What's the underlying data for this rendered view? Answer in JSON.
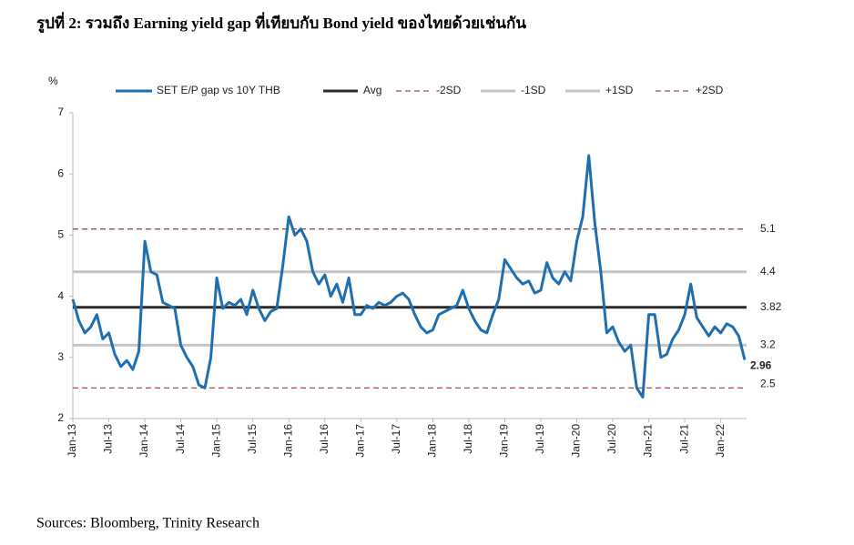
{
  "chart_data": {
    "type": "line",
    "title": "รูปที่ 2: รวมถึง Earning yield gap ที่เทียบกับ Bond yield ของไทยด้วยเช่นกัน",
    "y_label": "%",
    "source": "Sources: Bloomberg, Trinity Research",
    "categories": [
      "Jan-13",
      null,
      null,
      null,
      null,
      null,
      "Jul-13",
      null,
      null,
      null,
      null,
      null,
      "Jan-14",
      null,
      null,
      null,
      null,
      null,
      "Jul-14",
      null,
      null,
      null,
      null,
      null,
      "Jan-15",
      null,
      null,
      null,
      null,
      null,
      "Jul-15",
      null,
      null,
      null,
      null,
      null,
      "Jan-16",
      null,
      null,
      null,
      null,
      null,
      "Jul-16",
      null,
      null,
      null,
      null,
      null,
      "Jan-17",
      null,
      null,
      null,
      null,
      null,
      "Jul-17",
      null,
      null,
      null,
      null,
      null,
      "Jan-18",
      null,
      null,
      null,
      null,
      null,
      "Jul-18",
      null,
      null,
      null,
      null,
      null,
      "Jan-19",
      null,
      null,
      null,
      null,
      null,
      "Jul-19",
      null,
      null,
      null,
      null,
      null,
      "Jan-20",
      null,
      null,
      null,
      null,
      null,
      "Jul-20",
      null,
      null,
      null,
      null,
      null,
      "Jan-21",
      null,
      null,
      null,
      null,
      null,
      "Jul-21",
      null,
      null,
      null,
      null,
      null,
      "Jan-22",
      null,
      null,
      null,
      null
    ],
    "series": [
      {
        "name": "SET E/P gap vs 10Y THB",
        "color": "#1f6fb0",
        "values": [
          3.95,
          3.6,
          3.4,
          3.5,
          3.7,
          3.3,
          3.4,
          3.05,
          2.85,
          2.95,
          2.8,
          3.1,
          4.9,
          4.4,
          4.35,
          3.9,
          3.85,
          3.8,
          3.2,
          3.0,
          2.85,
          2.55,
          2.5,
          3.0,
          4.3,
          3.8,
          3.9,
          3.85,
          3.95,
          3.7,
          4.1,
          3.8,
          3.6,
          3.75,
          3.8,
          4.5,
          5.3,
          5.0,
          5.1,
          4.9,
          4.4,
          4.2,
          4.35,
          4.0,
          4.2,
          3.9,
          4.3,
          3.7,
          3.7,
          3.85,
          3.8,
          3.9,
          3.85,
          3.9,
          4.0,
          4.05,
          3.95,
          3.7,
          3.5,
          3.4,
          3.45,
          3.7,
          3.75,
          3.8,
          3.85,
          4.1,
          3.8,
          3.6,
          3.45,
          3.4,
          3.7,
          3.95,
          4.6,
          4.45,
          4.3,
          4.2,
          4.25,
          4.05,
          4.1,
          4.55,
          4.3,
          4.2,
          4.4,
          4.25,
          4.9,
          5.3,
          6.3,
          5.2,
          4.4,
          3.4,
          3.5,
          3.25,
          3.1,
          3.2,
          2.5,
          2.35,
          3.7,
          3.7,
          3.0,
          3.05,
          3.3,
          3.45,
          3.7,
          4.2,
          3.65,
          3.5,
          3.35,
          3.5,
          3.4,
          3.55,
          3.5,
          3.35,
          2.96
        ]
      }
    ],
    "reference_lines": [
      {
        "name": "Avg",
        "value": 3.82,
        "color": "#2b2b2b",
        "dashed": false
      },
      {
        "name": "-2SD",
        "value": 2.5,
        "color": "#a0524f",
        "dashed": true
      },
      {
        "name": "-1SD",
        "value": 3.2,
        "color": "#c4c4c4",
        "dashed": false
      },
      {
        "name": "+1SD",
        "value": 4.4,
        "color": "#c4c4c4",
        "dashed": false
      },
      {
        "name": "+2SD",
        "value": 5.1,
        "color": "#a0524f",
        "dashed": true
      }
    ],
    "ylim": [
      2,
      7
    ],
    "yticks": [
      2,
      3,
      4,
      5,
      6,
      7
    ],
    "legend": "top"
  }
}
